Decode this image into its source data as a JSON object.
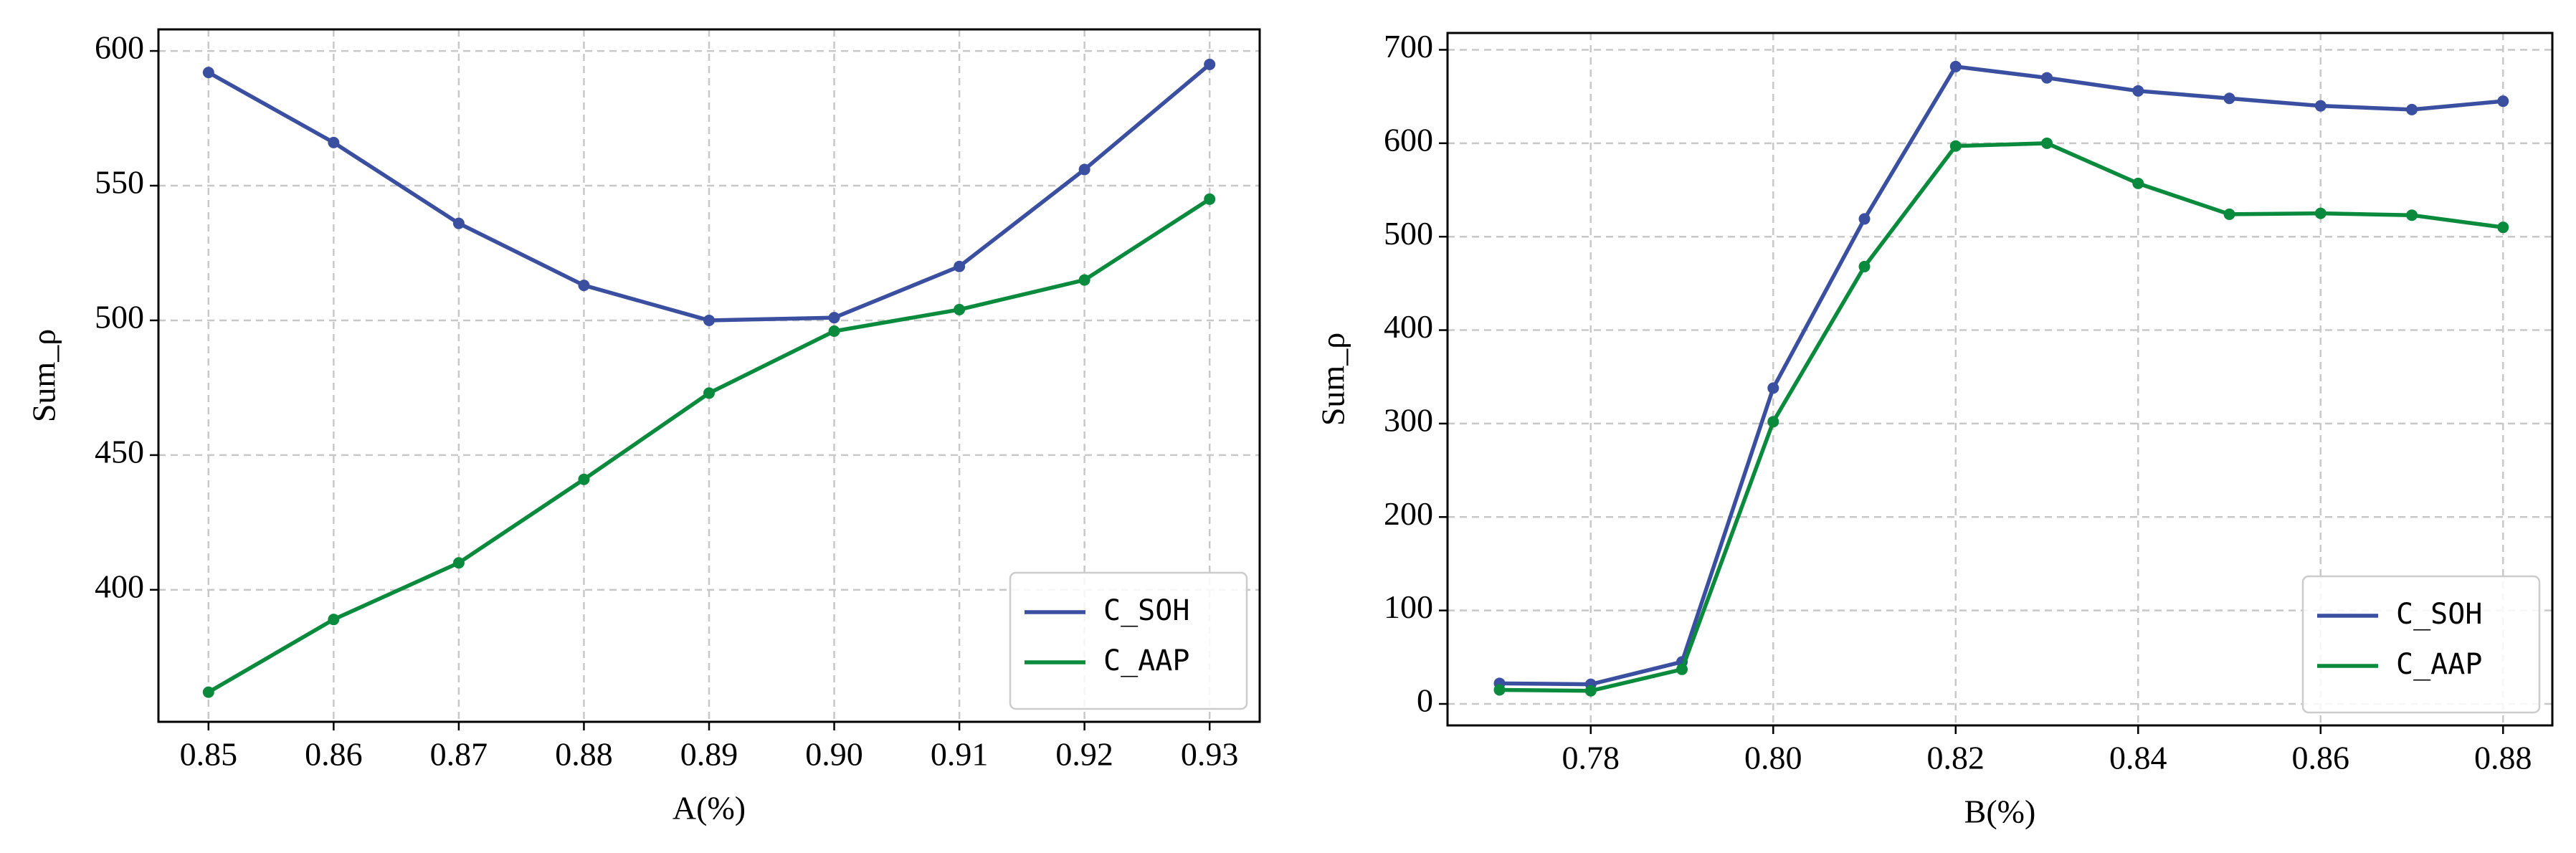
{
  "chart_data": [
    {
      "type": "line",
      "xlabel": "A(%)",
      "ylabel": "Sum_ρ",
      "x": [
        0.85,
        0.86,
        0.87,
        0.88,
        0.89,
        0.9,
        0.91,
        0.92,
        0.93
      ],
      "series": [
        {
          "name": "C_SOH",
          "color": "#3a4fa0",
          "values": [
            592,
            566,
            536,
            513,
            500,
            501,
            520,
            556,
            595
          ]
        },
        {
          "name": "C_AAP",
          "color": "#0a8a3c",
          "values": [
            362,
            389,
            410,
            441,
            473,
            496,
            504,
            515,
            545
          ]
        }
      ],
      "xlim": [
        0.846,
        0.934
      ],
      "xticks": [
        0.85,
        0.86,
        0.87,
        0.88,
        0.89,
        {
          "value": 0.9,
          "label": "0.90"
        },
        0.91,
        0.92,
        0.93
      ],
      "ylim": [
        351,
        608
      ],
      "yticks": [
        400,
        450,
        500,
        550,
        600
      ],
      "grid": true,
      "legend": "lower right"
    },
    {
      "type": "line",
      "xlabel": "B(%)",
      "ylabel": "Sum_ρ",
      "x": [
        0.77,
        0.78,
        0.79,
        0.8,
        0.81,
        0.82,
        0.83,
        0.84,
        0.85,
        0.86,
        0.87,
        0.88
      ],
      "series": [
        {
          "name": "C_SOH",
          "color": "#3a4fa0",
          "values": [
            22,
            21,
            45,
            338,
            519,
            682,
            670,
            656,
            648,
            640,
            636,
            645
          ]
        },
        {
          "name": "C_AAP",
          "color": "#0a8a3c",
          "values": [
            15,
            14,
            37,
            302,
            468,
            597,
            600,
            557,
            524,
            525,
            523,
            510
          ]
        }
      ],
      "xlim": [
        0.7643,
        0.8854
      ],
      "xticks": [
        0.78,
        {
          "value": 0.8,
          "label": "0.80"
        },
        0.82,
        0.84,
        0.86,
        0.88
      ],
      "ylim": [
        -23,
        718
      ],
      "yticks": [
        0,
        100,
        200,
        300,
        400,
        500,
        600,
        700
      ],
      "grid": true,
      "legend": "lower right"
    }
  ]
}
